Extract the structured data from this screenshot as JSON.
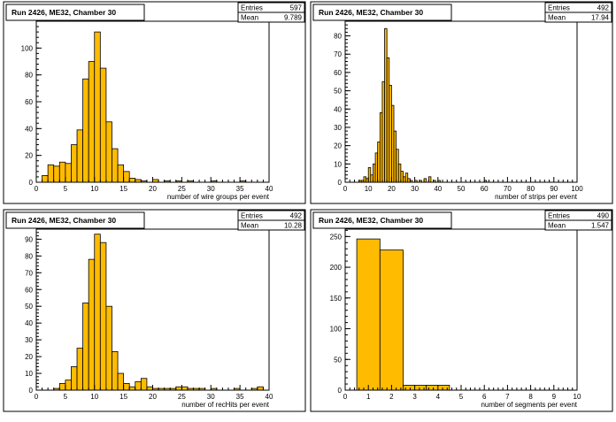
{
  "chart_data": [
    {
      "type": "bar",
      "title": "Run 2426, ME32, Chamber 30",
      "xlabel": "number of wire groups per event",
      "ylabel": "",
      "xlim": [
        0,
        40
      ],
      "ylim": [
        0,
        120
      ],
      "xticks": [
        0,
        5,
        10,
        15,
        20,
        25,
        30,
        35,
        40
      ],
      "yticks": [
        0,
        20,
        40,
        60,
        80,
        100
      ],
      "stats": {
        "entries_label": "Entries",
        "entries": "597",
        "mean_label": "Mean",
        "mean": "9.789"
      },
      "bins": [
        [
          1,
          2,
          5
        ],
        [
          2,
          3,
          13
        ],
        [
          3,
          4,
          12
        ],
        [
          4,
          5,
          15
        ],
        [
          5,
          6,
          14
        ],
        [
          6,
          7,
          28
        ],
        [
          7,
          8,
          39
        ],
        [
          8,
          9,
          77
        ],
        [
          9,
          10,
          90
        ],
        [
          10,
          11,
          112
        ],
        [
          11,
          12,
          85
        ],
        [
          12,
          13,
          45
        ],
        [
          13,
          14,
          25
        ],
        [
          14,
          15,
          13
        ],
        [
          15,
          16,
          8
        ],
        [
          16,
          17,
          3
        ],
        [
          17,
          18,
          2
        ],
        [
          18,
          19,
          1
        ],
        [
          20,
          21,
          2
        ],
        [
          22,
          23,
          1
        ],
        [
          24,
          25,
          1
        ],
        [
          26,
          27,
          1
        ],
        [
          30,
          31,
          1
        ],
        [
          35,
          36,
          1
        ]
      ]
    },
    {
      "type": "bar",
      "title": "Run 2426, ME32, Chamber 30",
      "xlabel": "number of strips per event",
      "ylabel": "",
      "xlim": [
        0,
        100
      ],
      "ylim": [
        0,
        88
      ],
      "xticks": [
        0,
        10,
        20,
        30,
        40,
        50,
        60,
        70,
        80,
        90,
        100
      ],
      "yticks": [
        0,
        10,
        20,
        30,
        40,
        50,
        60,
        70,
        80
      ],
      "stats": {
        "entries_label": "Entries",
        "entries": "492",
        "mean_label": "Mean",
        "mean": "17.94"
      },
      "bins": [
        [
          6,
          7,
          1
        ],
        [
          7,
          8,
          1
        ],
        [
          8,
          9,
          3
        ],
        [
          9,
          10,
          2
        ],
        [
          10,
          11,
          8
        ],
        [
          11,
          12,
          4
        ],
        [
          12,
          13,
          10
        ],
        [
          13,
          14,
          16
        ],
        [
          14,
          15,
          22
        ],
        [
          15,
          16,
          38
        ],
        [
          16,
          17,
          55
        ],
        [
          17,
          18,
          84
        ],
        [
          18,
          19,
          68
        ],
        [
          19,
          20,
          53
        ],
        [
          20,
          21,
          42
        ],
        [
          21,
          22,
          28
        ],
        [
          22,
          23,
          18
        ],
        [
          23,
          24,
          10
        ],
        [
          24,
          25,
          6
        ],
        [
          25,
          26,
          3
        ],
        [
          26,
          27,
          5
        ],
        [
          27,
          28,
          2
        ],
        [
          28,
          29,
          1
        ],
        [
          30,
          31,
          1
        ],
        [
          32,
          33,
          1
        ],
        [
          34,
          35,
          2
        ],
        [
          36,
          37,
          3
        ],
        [
          38,
          39,
          1
        ],
        [
          40,
          41,
          1
        ],
        [
          60,
          61,
          1
        ]
      ]
    },
    {
      "type": "bar",
      "title": "Run 2426, ME32, Chamber 30",
      "xlabel": "number of recHits per event",
      "ylabel": "",
      "xlim": [
        0,
        40
      ],
      "ylim": [
        0,
        96
      ],
      "xticks": [
        0,
        5,
        10,
        15,
        20,
        25,
        30,
        35,
        40
      ],
      "yticks": [
        0,
        10,
        20,
        30,
        40,
        50,
        60,
        70,
        80,
        90
      ],
      "stats": {
        "entries_label": "Entries",
        "entries": "492",
        "mean_label": "Mean",
        "mean": "10.28"
      },
      "bins": [
        [
          3,
          4,
          1
        ],
        [
          4,
          5,
          4
        ],
        [
          5,
          6,
          6
        ],
        [
          6,
          7,
          14
        ],
        [
          7,
          8,
          25
        ],
        [
          8,
          9,
          52
        ],
        [
          9,
          10,
          78
        ],
        [
          10,
          11,
          93
        ],
        [
          11,
          12,
          88
        ],
        [
          12,
          13,
          50
        ],
        [
          13,
          14,
          23
        ],
        [
          14,
          15,
          10
        ],
        [
          15,
          16,
          4
        ],
        [
          16,
          17,
          2
        ],
        [
          17,
          18,
          5
        ],
        [
          18,
          19,
          7
        ],
        [
          19,
          20,
          2
        ],
        [
          20,
          21,
          1
        ],
        [
          21,
          22,
          1
        ],
        [
          22,
          23,
          1
        ],
        [
          23,
          24,
          1
        ],
        [
          24,
          25,
          2
        ],
        [
          25,
          26,
          2
        ],
        [
          26,
          27,
          1
        ],
        [
          27,
          28,
          1
        ],
        [
          28,
          29,
          1
        ],
        [
          30,
          31,
          1
        ],
        [
          34,
          35,
          1
        ],
        [
          37,
          38,
          1
        ],
        [
          38,
          39,
          2
        ]
      ]
    },
    {
      "type": "bar",
      "title": "Run 2426, ME32, Chamber 30",
      "xlabel": "number of segments per event",
      "ylabel": "",
      "xlim": [
        0,
        10
      ],
      "ylim": [
        0,
        262
      ],
      "xticks": [
        0,
        1,
        2,
        3,
        4,
        5,
        6,
        7,
        8,
        9,
        10
      ],
      "yticks": [
        0,
        50,
        100,
        150,
        200,
        250
      ],
      "stats": {
        "entries_label": "Entries",
        "entries": "490",
        "mean_label": "Mean",
        "mean": "1.547"
      },
      "bins": [
        [
          0.5,
          1.5,
          246
        ],
        [
          1.5,
          2.5,
          228
        ],
        [
          2.5,
          3.5,
          8
        ],
        [
          3.5,
          4.5,
          8
        ]
      ]
    }
  ]
}
